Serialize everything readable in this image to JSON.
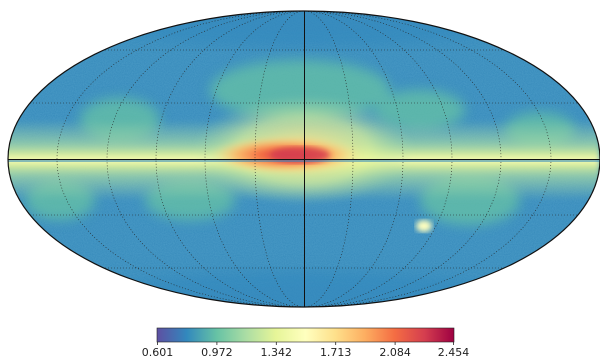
{
  "map": {
    "projection": "mollweide",
    "graticule": true,
    "graticule_style": "dotted"
  },
  "colorbar": {
    "colormap": "Spectral_r",
    "min": 0.601,
    "max": 2.454,
    "ticks": [
      "0.601",
      "0.972",
      "1.342",
      "1.713",
      "2.084",
      "2.454"
    ],
    "colors": [
      "#5e4fa2",
      "#3288bd",
      "#66c2a5",
      "#abdda4",
      "#e6f598",
      "#ffffbf",
      "#fee08b",
      "#fdae61",
      "#f46d43",
      "#d53e4f",
      "#9e0142"
    ]
  }
}
